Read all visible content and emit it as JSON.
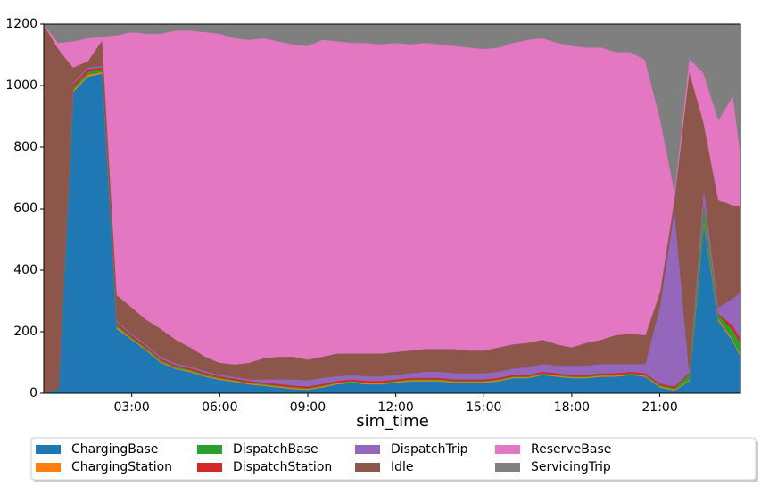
{
  "chart_data": {
    "type": "stacked_area",
    "x_label": "sim_time",
    "x": [
      0,
      0.5,
      1,
      1.5,
      2,
      2.5,
      3,
      3.5,
      4,
      4.5,
      5,
      5.5,
      6,
      6.5,
      7,
      7.5,
      8,
      8.5,
      9,
      9.5,
      10,
      10.5,
      11,
      11.5,
      12,
      12.5,
      13,
      13.5,
      14,
      14.5,
      15,
      15.5,
      16,
      16.5,
      17,
      17.5,
      18,
      18.5,
      19,
      19.5,
      20,
      20.5,
      21,
      21.5,
      22,
      22.5,
      23,
      23.5,
      23.75
    ],
    "xlim": [
      0,
      23.75
    ],
    "xticks": [
      {
        "value": 3,
        "label": "03:00"
      },
      {
        "value": 6,
        "label": "06:00"
      },
      {
        "value": 9,
        "label": "09:00"
      },
      {
        "value": 12,
        "label": "12:00"
      },
      {
        "value": 15,
        "label": "15:00"
      },
      {
        "value": 18,
        "label": "18:00"
      },
      {
        "value": 21,
        "label": "21:00"
      }
    ],
    "ylim": [
      0,
      1200
    ],
    "yticks": [
      0,
      200,
      400,
      600,
      800,
      1000,
      1200
    ],
    "series": [
      {
        "name": "ChargingBase",
        "color": "#1f77b4",
        "values": [
          0,
          15,
          980,
          1030,
          1040,
          210,
          175,
          140,
          100,
          80,
          70,
          55,
          45,
          38,
          30,
          25,
          20,
          15,
          12,
          20,
          30,
          35,
          30,
          30,
          35,
          40,
          40,
          40,
          35,
          35,
          35,
          40,
          50,
          50,
          60,
          55,
          50,
          50,
          55,
          55,
          60,
          55,
          20,
          10,
          40,
          560,
          235,
          170,
          120
        ]
      },
      {
        "name": "ChargingStation",
        "color": "#ff7f0e",
        "values": [
          0,
          0,
          5,
          5,
          5,
          5,
          3,
          3,
          3,
          3,
          3,
          3,
          3,
          3,
          3,
          3,
          3,
          3,
          3,
          3,
          3,
          3,
          3,
          3,
          3,
          3,
          3,
          3,
          3,
          3,
          3,
          3,
          3,
          3,
          3,
          3,
          3,
          3,
          3,
          3,
          3,
          3,
          3,
          3,
          3,
          10,
          5,
          5,
          5
        ]
      },
      {
        "name": "DispatchBase",
        "color": "#2ca02c",
        "values": [
          0,
          2,
          10,
          10,
          10,
          8,
          5,
          5,
          5,
          5,
          5,
          5,
          3,
          3,
          3,
          3,
          3,
          3,
          3,
          3,
          3,
          3,
          3,
          3,
          3,
          3,
          3,
          3,
          3,
          3,
          3,
          3,
          3,
          3,
          3,
          3,
          3,
          3,
          3,
          3,
          3,
          3,
          5,
          5,
          20,
          50,
          15,
          30,
          40
        ]
      },
      {
        "name": "DispatchStation",
        "color": "#d62728",
        "values": [
          0,
          2,
          10,
          10,
          5,
          8,
          6,
          6,
          5,
          5,
          5,
          5,
          5,
          5,
          5,
          5,
          5,
          5,
          5,
          5,
          5,
          5,
          5,
          5,
          5,
          5,
          5,
          5,
          5,
          5,
          5,
          5,
          5,
          5,
          5,
          5,
          5,
          5,
          5,
          5,
          5,
          5,
          5,
          5,
          5,
          5,
          5,
          15,
          15
        ]
      },
      {
        "name": "DispatchTrip",
        "color": "#9467bd",
        "values": [
          0,
          0,
          5,
          5,
          5,
          5,
          5,
          5,
          5,
          5,
          5,
          5,
          5,
          5,
          5,
          10,
          15,
          20,
          20,
          20,
          15,
          15,
          15,
          15,
          15,
          15,
          20,
          20,
          20,
          20,
          20,
          20,
          20,
          25,
          25,
          25,
          30,
          30,
          30,
          30,
          25,
          30,
          250,
          580,
          10,
          50,
          20,
          90,
          150
        ]
      },
      {
        "name": "Idle",
        "color": "#8c564b",
        "values": [
          1200,
          1101,
          50,
          20,
          85,
          84,
          86,
          81,
          92,
          77,
          62,
          47,
          39,
          41,
          54,
          69,
          74,
          74,
          67,
          69,
          74,
          69,
          74,
          74,
          74,
          74,
          74,
          74,
          79,
          74,
          74,
          79,
          79,
          79,
          79,
          69,
          59,
          74,
          79,
          94,
          99,
          94,
          47,
          37,
          972,
          205,
          350,
          300,
          280
        ]
      },
      {
        "name": "ReserveBase",
        "color": "#e377c2",
        "values": [
          0,
          20,
          85,
          75,
          10,
          845,
          895,
          930,
          960,
          1005,
          1030,
          1055,
          1070,
          1060,
          1050,
          1040,
          1025,
          1015,
          1020,
          1030,
          1015,
          1010,
          1010,
          1005,
          1005,
          995,
          995,
          990,
          985,
          985,
          980,
          975,
          980,
          985,
          980,
          980,
          980,
          960,
          950,
          920,
          915,
          895,
          570,
          20,
          40,
          160,
          260,
          360,
          170
        ]
      },
      {
        "name": "ServicingTrip",
        "color": "#7f7f7f",
        "values": [
          0,
          60,
          55,
          45,
          40,
          35,
          25,
          30,
          30,
          20,
          20,
          25,
          30,
          45,
          50,
          45,
          55,
          65,
          70,
          50,
          55,
          60,
          60,
          65,
          60,
          65,
          60,
          65,
          70,
          75,
          80,
          75,
          60,
          50,
          45,
          60,
          70,
          75,
          75,
          90,
          90,
          115,
          300,
          540,
          110,
          160,
          310,
          230,
          420
        ]
      }
    ],
    "legend": "lower-center"
  }
}
